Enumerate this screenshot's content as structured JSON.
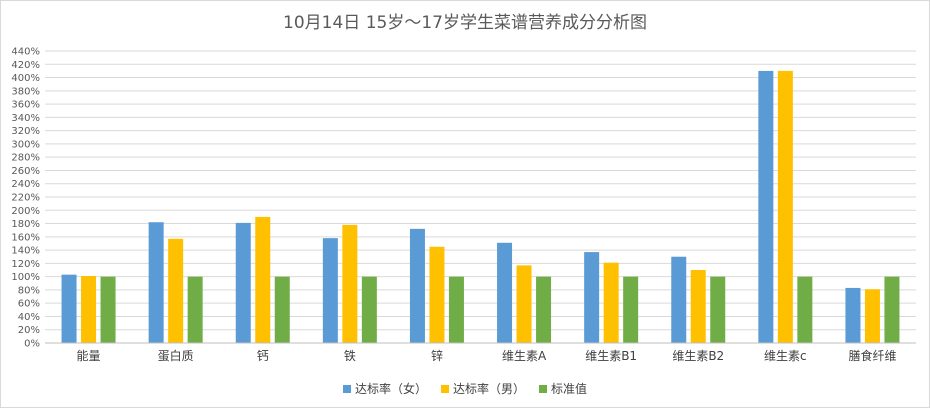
{
  "chart_data": {
    "type": "bar",
    "title": "10月14日 15岁～17岁学生菜谱营养成分分析图",
    "categories": [
      "能量",
      "蛋白质",
      "钙",
      "铁",
      "锌",
      "维生素A",
      "维生素B1",
      "维生素B2",
      "维生素c",
      "膳食纤维"
    ],
    "series": [
      {
        "name": "达标率（女）",
        "color": "#5b9bd5",
        "values": [
          103,
          182,
          181,
          158,
          172,
          151,
          137,
          130,
          410,
          83
        ]
      },
      {
        "name": "达标率（男）",
        "color": "#ffc000",
        "values": [
          101,
          157,
          190,
          178,
          145,
          117,
          121,
          110,
          410,
          81
        ]
      },
      {
        "name": "标准值",
        "color": "#70ad47",
        "values": [
          100,
          100,
          100,
          100,
          100,
          100,
          100,
          100,
          100,
          100
        ]
      }
    ],
    "ylim": [
      0,
      440
    ],
    "ytick_step": 20,
    "y_format": "percent",
    "grid": true,
    "legend": "bottom"
  }
}
